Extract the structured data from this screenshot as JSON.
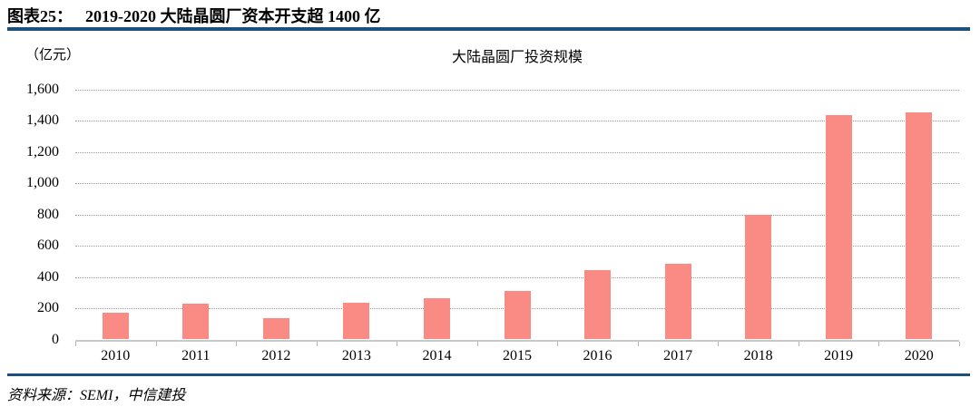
{
  "header": {
    "figure_label": "图表25：",
    "figure_title": "2019-2020 大陆晶圆厂资本开支超 1400 亿"
  },
  "source": {
    "text": "资料来源：SEMI，中信建投"
  },
  "colors": {
    "accent_navy": "#1B507F",
    "bar_fill": "#F98A84",
    "gridline": "#9B9B9B",
    "axis": "#C9C9C9"
  },
  "chart_data": {
    "type": "bar",
    "title": "大陆晶圆厂投资规模",
    "unit_label": "（亿元）",
    "xlabel": "",
    "ylabel": "（亿元）",
    "categories": [
      "2010",
      "2011",
      "2012",
      "2013",
      "2014",
      "2015",
      "2016",
      "2017",
      "2018",
      "2019",
      "2020"
    ],
    "values": [
      170,
      230,
      138,
      236,
      267,
      311,
      443,
      483,
      797,
      1435,
      1455
    ],
    "ylim": [
      0,
      1600
    ],
    "ytick_step": 200,
    "ytick_labels": [
      "0",
      "200",
      "400",
      "600",
      "800",
      "1,000",
      "1,200",
      "1,400",
      "1,600"
    ],
    "grid": true,
    "legend_position": "none"
  }
}
